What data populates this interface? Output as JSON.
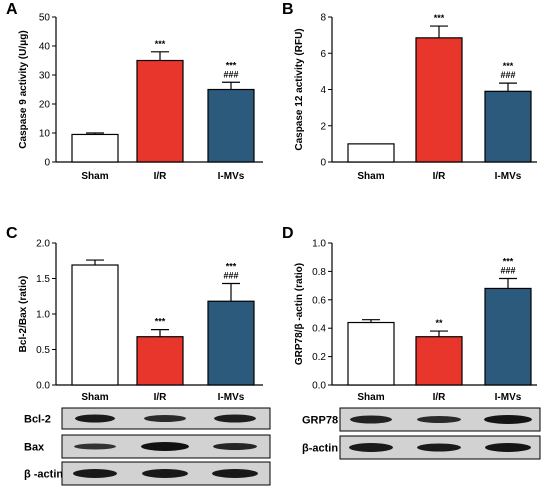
{
  "panels": {
    "A": {
      "label": "A"
    },
    "B": {
      "label": "B"
    },
    "C": {
      "label": "C"
    },
    "D": {
      "label": "D"
    }
  },
  "colors": {
    "sham": "#ffffff",
    "ir": "#e8362d",
    "imvs": "#2b5a7c"
  },
  "chart_data": [
    {
      "panel": "A",
      "type": "bar",
      "categories": [
        "Sham",
        "I/R",
        "I-MVs"
      ],
      "values": [
        9.5,
        35,
        25
      ],
      "errors": [
        0.5,
        3,
        2.5
      ],
      "annotations": [
        [],
        [
          "***"
        ],
        [
          "***",
          "###"
        ]
      ],
      "ylabel": "Caspase 9 activity (U/μg)",
      "ylim": [
        0,
        50
      ],
      "yticks": [
        0,
        10,
        20,
        30,
        40,
        50
      ]
    },
    {
      "panel": "B",
      "type": "bar",
      "categories": [
        "Sham",
        "I/R",
        "I-MVs"
      ],
      "values": [
        1.0,
        6.85,
        3.9
      ],
      "errors": [
        0,
        0.65,
        0.45
      ],
      "annotations": [
        [],
        [
          "***"
        ],
        [
          "***",
          "###"
        ]
      ],
      "ylabel": "Caspase 12 activity (RFU)",
      "ylim": [
        0,
        8
      ],
      "yticks": [
        0,
        2,
        4,
        6,
        8
      ]
    },
    {
      "panel": "C",
      "type": "bar",
      "categories": [
        "Sham",
        "I/R",
        "I-MVs"
      ],
      "values": [
        1.69,
        0.68,
        1.18
      ],
      "errors": [
        0.07,
        0.1,
        0.25
      ],
      "annotations": [
        [],
        [
          "***"
        ],
        [
          "***",
          "###"
        ]
      ],
      "ylabel": "Bcl-2/Bax (ratio)",
      "ylim": [
        0,
        2.0
      ],
      "yticks": [
        "0.0",
        "0.5",
        "1.0",
        "1.5",
        "2.0"
      ]
    },
    {
      "panel": "D",
      "type": "bar",
      "categories": [
        "Sham",
        "I/R",
        "I-MVs"
      ],
      "values": [
        0.44,
        0.34,
        0.68
      ],
      "errors": [
        0.02,
        0.04,
        0.07
      ],
      "annotations": [
        [],
        [
          "**"
        ],
        [
          "***",
          "###"
        ]
      ],
      "ylabel": "GRP78/β -actin (ratio)",
      "ylim": [
        0,
        1.0
      ],
      "yticks": [
        "0.0",
        "0.2",
        "0.4",
        "0.6",
        "0.8",
        "1.0"
      ]
    }
  ],
  "blots": {
    "C": [
      "Bcl-2",
      "Bax",
      "β -actin"
    ],
    "D": [
      "GRP78",
      "β-actin"
    ]
  }
}
